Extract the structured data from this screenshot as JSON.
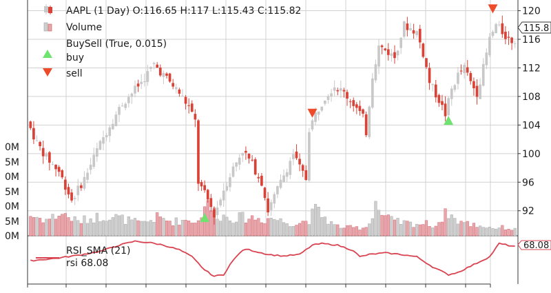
{
  "chart_data": [
    {
      "type": "candlestick",
      "legend": {
        "placement": "top-left",
        "entries": [
          {
            "label": "AAPL (1 Day) O:116.65 H:117 L:115.43 C:115.82",
            "marker": "candle"
          },
          {
            "label": "Volume",
            "marker": "volume-bar"
          },
          {
            "label": "BuySell (True, 0.015)",
            "marker": "none"
          },
          {
            "label": "buy",
            "marker": "up-triangle"
          },
          {
            "label": "sell",
            "marker": "down-triangle"
          }
        ]
      },
      "price_axis": {
        "ticks": [
          92,
          96,
          100,
          104,
          108,
          112,
          116,
          120
        ],
        "tick_labels": [
          "92",
          "96",
          "100",
          "104",
          "108",
          "112",
          "116",
          "120"
        ],
        "range": [
          88.5,
          121.5
        ],
        "last_price_label": "115.8",
        "last_price": 115.82
      },
      "volume_axis": {
        "tick_labels": [
          "0M",
          "5M",
          "0M",
          "5M",
          "0M",
          "5M",
          "0M"
        ],
        "range": [
          0,
          28
        ]
      },
      "last_candle": {
        "open": 116.65,
        "high": 117,
        "low": 115.43,
        "close": 115.82
      },
      "price_path": [
        [
          0,
          104.5
        ],
        [
          3,
          101.5
        ],
        [
          6,
          99.5
        ],
        [
          10,
          97.5
        ],
        [
          14,
          93.5
        ],
        [
          18,
          96.5
        ],
        [
          22,
          100.5
        ],
        [
          26,
          104.0
        ],
        [
          30,
          107.0
        ],
        [
          36,
          110.0
        ],
        [
          40,
          112.5
        ],
        [
          44,
          110.5
        ],
        [
          48,
          108.5
        ],
        [
          51,
          106.5
        ],
        [
          53,
          104.5
        ],
        [
          54,
          96.0
        ],
        [
          57,
          93.5
        ],
        [
          59,
          91.5
        ],
        [
          60,
          92.5
        ],
        [
          62,
          95.0
        ],
        [
          65,
          98.0
        ],
        [
          68,
          100.5
        ],
        [
          71,
          98.5
        ],
        [
          74,
          96.0
        ],
        [
          76,
          92.0
        ],
        [
          79,
          95.0
        ],
        [
          82,
          98.0
        ],
        [
          84,
          100.0
        ],
        [
          86,
          98.0
        ],
        [
          88,
          96.5
        ],
        [
          89,
          103.5
        ],
        [
          91,
          105.5
        ],
        [
          94,
          108.0
        ],
        [
          97,
          109.5
        ],
        [
          100,
          108.5
        ],
        [
          103,
          107.0
        ],
        [
          106,
          105.0
        ],
        [
          107,
          103.0
        ],
        [
          109,
          111.0
        ],
        [
          111,
          115.0
        ],
        [
          113,
          114.5
        ],
        [
          116,
          113.5
        ],
        [
          119,
          118.0
        ],
        [
          121,
          117.5
        ],
        [
          123,
          117.0
        ],
        [
          125,
          114.0
        ],
        [
          127,
          110.0
        ],
        [
          130,
          107.5
        ],
        [
          132,
          105.5
        ],
        [
          134,
          109.0
        ],
        [
          136,
          111.0
        ],
        [
          138,
          112.0
        ],
        [
          140,
          110.0
        ],
        [
          142,
          108.5
        ],
        [
          144,
          112.0
        ],
        [
          146,
          116.0
        ],
        [
          148,
          118.0
        ],
        [
          150,
          117.0
        ],
        [
          152,
          116.0
        ],
        [
          153,
          115.8
        ]
      ],
      "volume_path": [
        [
          0,
          10
        ],
        [
          5,
          8
        ],
        [
          10,
          11
        ],
        [
          15,
          7
        ],
        [
          20,
          9
        ],
        [
          25,
          10
        ],
        [
          30,
          8
        ],
        [
          35,
          6
        ],
        [
          40,
          9
        ],
        [
          45,
          7
        ],
        [
          50,
          8
        ],
        [
          53,
          7
        ],
        [
          55,
          16
        ],
        [
          58,
          12
        ],
        [
          60,
          10
        ],
        [
          63,
          9
        ],
        [
          66,
          9
        ],
        [
          70,
          9
        ],
        [
          74,
          8
        ],
        [
          76,
          9
        ],
        [
          80,
          7
        ],
        [
          84,
          6
        ],
        [
          88,
          8
        ],
        [
          90,
          13
        ],
        [
          93,
          9
        ],
        [
          96,
          5
        ],
        [
          100,
          4
        ],
        [
          105,
          4
        ],
        [
          107,
          6
        ],
        [
          109,
          17
        ],
        [
          111,
          10
        ],
        [
          115,
          7
        ],
        [
          120,
          6
        ],
        [
          125,
          6
        ],
        [
          128,
          5
        ],
        [
          130,
          9
        ],
        [
          132,
          12
        ],
        [
          134,
          8
        ],
        [
          138,
          6
        ],
        [
          142,
          5
        ],
        [
          146,
          4
        ],
        [
          150,
          4
        ],
        [
          153,
          3
        ]
      ],
      "buy_signals": [
        {
          "bar": 55,
          "price": 91.0
        },
        {
          "bar": 132,
          "price": 104.6
        }
      ],
      "sell_signals": [
        {
          "bar": 89,
          "price": 105.7
        },
        {
          "bar": 146,
          "price": 120.3
        }
      ]
    },
    {
      "type": "line",
      "legend": {
        "placement": "top-left",
        "entries": [
          {
            "label": "RSI_SMA (21)",
            "marker": "line"
          },
          {
            "label": "rsi 68.08",
            "marker": "none"
          }
        ]
      },
      "series": [
        {
          "name": "RSI_SMA (21)",
          "x": [
            0,
            8,
            15,
            22,
            28,
            33,
            38,
            42,
            47,
            51,
            55,
            58,
            61,
            63,
            66,
            68,
            71,
            75,
            80,
            85,
            89,
            92,
            97,
            102,
            104,
            107,
            112,
            117,
            122,
            127,
            132,
            135,
            140,
            145,
            148,
            153
          ],
          "values": [
            50,
            53,
            57,
            62,
            70,
            75,
            73,
            70,
            64,
            55,
            38,
            30,
            32,
            45,
            60,
            65,
            62,
            58,
            56,
            58,
            70,
            72,
            70,
            63,
            55,
            58,
            60,
            58,
            55,
            42,
            32,
            35,
            45,
            55,
            72,
            68.08
          ]
        }
      ],
      "y_range": [
        20,
        82
      ],
      "last_value_label": "68.08",
      "color": "#d9424f"
    }
  ],
  "colors": {
    "up_candle": "#c8c8c8",
    "down_candle": "#d94236",
    "volume_up": "#cfcfcf",
    "volume_down": "#e7a6ab",
    "buy_marker": "#6fe26f",
    "sell_marker": "#ee4b2b",
    "rsi_line": "#d9424f",
    "grid": "#d0d0d0"
  }
}
